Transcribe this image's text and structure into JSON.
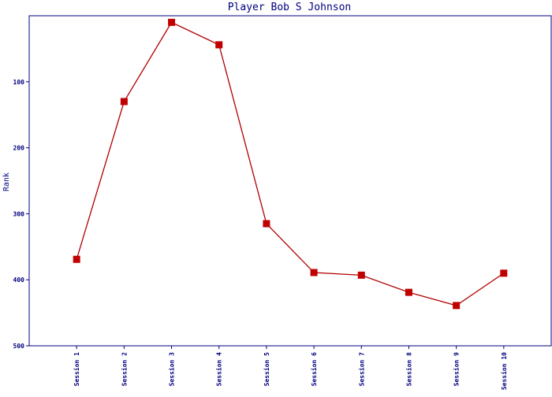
{
  "chart_data": {
    "type": "line",
    "title": "Player Bob S Johnson",
    "y_label": "Rank",
    "categories": [
      "Session 1",
      "Session 2",
      "Session 3",
      "Session 4",
      "Session 5",
      "Session 6",
      "Session 7",
      "Session 8",
      "Session 9",
      "Session 10"
    ],
    "series": [
      {
        "name": "Rank",
        "color": "#b00000",
        "marker_color": "#c00000",
        "values": [
          369,
          130,
          10,
          44,
          315,
          389,
          393,
          419,
          439,
          390
        ]
      }
    ],
    "ylim": [
      0,
      500
    ],
    "y_inverted": true,
    "yticks": [
      100,
      200,
      300,
      400,
      500
    ],
    "axis_color": "#000080"
  }
}
